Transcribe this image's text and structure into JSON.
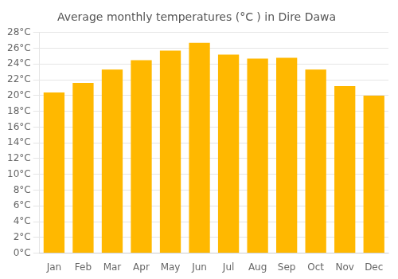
{
  "chart_data": {
    "type": "bar",
    "title": "Average monthly temperatures (°C ) in Dire Dawa",
    "categories": [
      "Jan",
      "Feb",
      "Mar",
      "Apr",
      "May",
      "Jun",
      "Jul",
      "Aug",
      "Sep",
      "Oct",
      "Nov",
      "Dec"
    ],
    "values": [
      20.4,
      21.6,
      23.3,
      24.5,
      25.7,
      26.7,
      25.2,
      24.7,
      24.8,
      23.3,
      21.2,
      20.0
    ],
    "color": "#FFB800",
    "ylim": [
      0,
      28
    ],
    "yticks": [
      {
        "value": 0,
        "label": "0°C"
      },
      {
        "value": 2,
        "label": "2°C"
      },
      {
        "value": 4,
        "label": "4°C"
      },
      {
        "value": 6,
        "label": "6°C"
      },
      {
        "value": 8,
        "label": "8°C"
      },
      {
        "value": 10,
        "label": "10°C"
      },
      {
        "value": 12,
        "label": "12°C"
      },
      {
        "value": 14,
        "label": "14°C"
      },
      {
        "value": 16,
        "label": "16°C"
      },
      {
        "value": 18,
        "label": "18°C"
      },
      {
        "value": 20,
        "label": "20°C"
      },
      {
        "value": 22,
        "label": "22°C"
      },
      {
        "value": 24,
        "label": "24°C"
      },
      {
        "value": 26,
        "label": "26°C"
      },
      {
        "value": 28,
        "label": "28°C"
      }
    ],
    "grid": true
  }
}
